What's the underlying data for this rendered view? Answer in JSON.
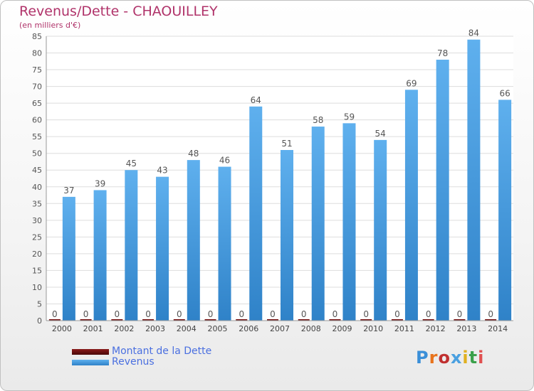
{
  "chart_data": {
    "type": "bar",
    "title": "Revenus/Dette - CHAOUILLEY",
    "subtitle": "(en milliers d'€)",
    "xlabel": "",
    "ylabel": "",
    "ylim": [
      0,
      85
    ],
    "yticks": [
      0,
      5,
      10,
      15,
      20,
      25,
      30,
      35,
      40,
      45,
      50,
      55,
      60,
      65,
      70,
      75,
      80,
      85
    ],
    "grid": true,
    "legend_position": "bottom-left",
    "categories": [
      "2000",
      "2001",
      "2002",
      "2003",
      "2004",
      "2005",
      "2006",
      "2007",
      "2008",
      "2009",
      "2010",
      "2011",
      "2012",
      "2013",
      "2014"
    ],
    "series": [
      {
        "name": "Montant de la Dette",
        "color": "#6b0d0d",
        "values": [
          0,
          0,
          0,
          0,
          0,
          0,
          0,
          0,
          0,
          0,
          0,
          0,
          0,
          0,
          0
        ]
      },
      {
        "name": "Revenus",
        "color": "#4aa3e8",
        "values": [
          37,
          39,
          45,
          43,
          48,
          46,
          64,
          51,
          58,
          59,
          54,
          69,
          78,
          84,
          66
        ]
      }
    ]
  },
  "logo": {
    "text": "Proxiti"
  }
}
